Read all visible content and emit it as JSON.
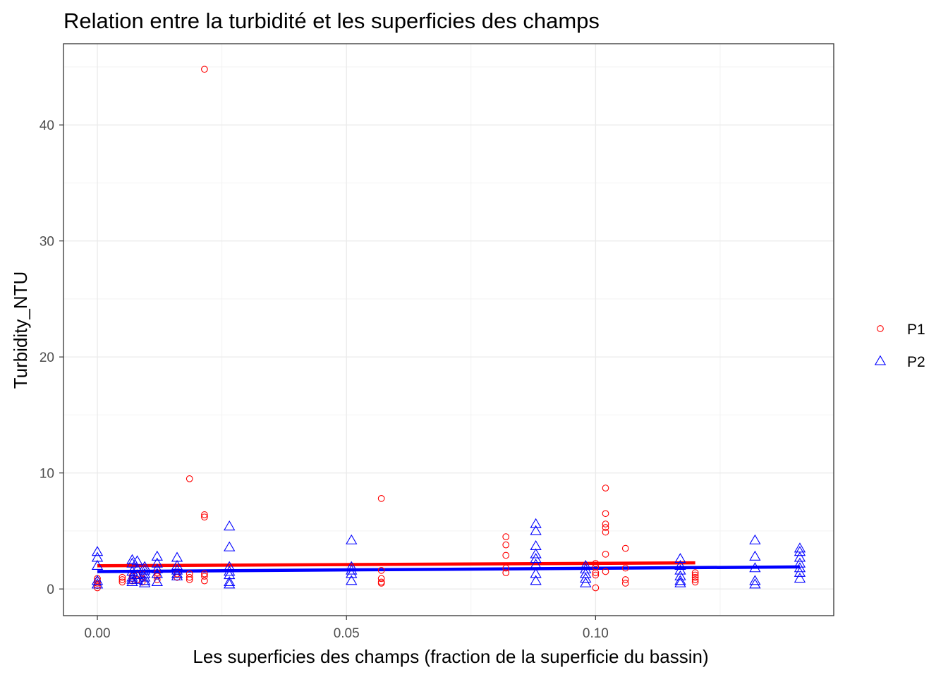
{
  "chart_data": {
    "type": "scatter",
    "title": "Relation entre la turbidité et les superficies des champs",
    "xlabel": "Les superficies des champs (fraction de la superficie du bassin)",
    "ylabel": "Turbidity_NTU",
    "xlim": [
      -0.0068,
      0.1478
    ],
    "ylim": [
      -2.3,
      47.0
    ],
    "x_ticks": [
      0.0,
      0.05,
      0.1
    ],
    "x_tick_labels": [
      "0.00",
      "0.05",
      "0.10"
    ],
    "y_ticks": [
      0,
      10,
      20,
      30,
      40
    ],
    "y_tick_labels": [
      "0",
      "10",
      "20",
      "30",
      "40"
    ],
    "grid": true,
    "legend_position": "right",
    "series": [
      {
        "name": "P1",
        "marker": "circle",
        "color": "#ff0000",
        "points": [
          [
            0.0,
            0.1
          ],
          [
            0.0,
            0.3
          ],
          [
            0.0,
            0.5
          ],
          [
            0.0,
            0.7
          ],
          [
            0.0,
            0.9
          ],
          [
            0.005,
            0.6
          ],
          [
            0.005,
            0.8
          ],
          [
            0.005,
            1.0
          ],
          [
            0.007,
            0.7
          ],
          [
            0.007,
            0.9
          ],
          [
            0.007,
            1.1
          ],
          [
            0.008,
            0.8
          ],
          [
            0.008,
            1.2
          ],
          [
            0.009,
            0.6
          ],
          [
            0.009,
            0.9
          ],
          [
            0.009,
            1.3
          ],
          [
            0.012,
            0.8
          ],
          [
            0.012,
            1.1
          ],
          [
            0.012,
            1.4
          ],
          [
            0.016,
            1.0
          ],
          [
            0.016,
            1.3
          ],
          [
            0.0185,
            0.8
          ],
          [
            0.0185,
            1.0
          ],
          [
            0.0185,
            1.3
          ],
          [
            0.0185,
            9.5
          ],
          [
            0.0215,
            0.7
          ],
          [
            0.0215,
            1.1
          ],
          [
            0.0215,
            1.3
          ],
          [
            0.0215,
            6.2
          ],
          [
            0.0215,
            6.4
          ],
          [
            0.0215,
            44.8
          ],
          [
            0.057,
            0.5
          ],
          [
            0.057,
            0.6
          ],
          [
            0.057,
            0.9
          ],
          [
            0.057,
            1.6
          ],
          [
            0.057,
            7.8
          ],
          [
            0.082,
            1.4
          ],
          [
            0.082,
            1.8
          ],
          [
            0.082,
            2.9
          ],
          [
            0.082,
            3.8
          ],
          [
            0.082,
            4.5
          ],
          [
            0.1,
            0.1
          ],
          [
            0.1,
            1.2
          ],
          [
            0.1,
            1.4
          ],
          [
            0.1,
            1.9
          ],
          [
            0.1,
            2.2
          ],
          [
            0.102,
            1.5
          ],
          [
            0.102,
            3.0
          ],
          [
            0.102,
            4.9
          ],
          [
            0.102,
            5.3
          ],
          [
            0.102,
            5.6
          ],
          [
            0.102,
            6.5
          ],
          [
            0.102,
            8.7
          ],
          [
            0.106,
            0.5
          ],
          [
            0.106,
            0.8
          ],
          [
            0.106,
            1.8
          ],
          [
            0.106,
            3.5
          ],
          [
            0.12,
            0.6
          ],
          [
            0.12,
            0.8
          ],
          [
            0.12,
            1.0
          ],
          [
            0.12,
            1.2
          ],
          [
            0.12,
            1.4
          ]
        ],
        "trend": {
          "x": [
            0.0,
            0.12
          ],
          "y": [
            2.0,
            2.25
          ]
        }
      },
      {
        "name": "P2",
        "marker": "triangle",
        "color": "#0000ff",
        "points": [
          [
            0.0,
            0.4
          ],
          [
            0.0,
            0.7
          ],
          [
            0.0,
            2.0
          ],
          [
            0.0,
            2.7
          ],
          [
            0.0,
            3.2
          ],
          [
            0.007,
            0.6
          ],
          [
            0.007,
            0.8
          ],
          [
            0.007,
            1.0
          ],
          [
            0.007,
            1.5
          ],
          [
            0.007,
            2.2
          ],
          [
            0.007,
            2.5
          ],
          [
            0.008,
            0.8
          ],
          [
            0.008,
            1.2
          ],
          [
            0.008,
            1.7
          ],
          [
            0.008,
            2.4
          ],
          [
            0.0095,
            0.5
          ],
          [
            0.0095,
            0.7
          ],
          [
            0.0095,
            1.0
          ],
          [
            0.0095,
            1.3
          ],
          [
            0.0095,
            1.6
          ],
          [
            0.0095,
            1.9
          ],
          [
            0.012,
            0.6
          ],
          [
            0.012,
            1.3
          ],
          [
            0.012,
            1.7
          ],
          [
            0.012,
            2.2
          ],
          [
            0.012,
            2.8
          ],
          [
            0.016,
            1.1
          ],
          [
            0.016,
            1.3
          ],
          [
            0.016,
            1.6
          ],
          [
            0.016,
            2.0
          ],
          [
            0.016,
            2.7
          ],
          [
            0.0265,
            0.4
          ],
          [
            0.0265,
            0.6
          ],
          [
            0.0265,
            1.2
          ],
          [
            0.0265,
            1.5
          ],
          [
            0.0265,
            1.9
          ],
          [
            0.0265,
            3.6
          ],
          [
            0.0265,
            5.4
          ],
          [
            0.051,
            0.7
          ],
          [
            0.051,
            1.3
          ],
          [
            0.051,
            1.6
          ],
          [
            0.051,
            1.9
          ],
          [
            0.051,
            4.2
          ],
          [
            0.088,
            0.7
          ],
          [
            0.088,
            1.3
          ],
          [
            0.088,
            2.1
          ],
          [
            0.088,
            2.6
          ],
          [
            0.088,
            3.0
          ],
          [
            0.088,
            3.7
          ],
          [
            0.088,
            5.0
          ],
          [
            0.088,
            5.6
          ],
          [
            0.098,
            0.5
          ],
          [
            0.098,
            0.9
          ],
          [
            0.098,
            1.3
          ],
          [
            0.098,
            1.7
          ],
          [
            0.098,
            2.0
          ],
          [
            0.117,
            0.5
          ],
          [
            0.117,
            0.7
          ],
          [
            0.117,
            1.1
          ],
          [
            0.117,
            1.6
          ],
          [
            0.117,
            2.0
          ],
          [
            0.117,
            2.6
          ],
          [
            0.132,
            0.4
          ],
          [
            0.132,
            0.7
          ],
          [
            0.132,
            1.8
          ],
          [
            0.132,
            2.8
          ],
          [
            0.132,
            4.2
          ],
          [
            0.141,
            0.9
          ],
          [
            0.141,
            1.4
          ],
          [
            0.141,
            1.8
          ],
          [
            0.141,
            2.2
          ],
          [
            0.141,
            2.7
          ],
          [
            0.141,
            3.2
          ],
          [
            0.141,
            3.5
          ]
        ],
        "trend": {
          "x": [
            0.0,
            0.141
          ],
          "y": [
            1.5,
            1.9
          ]
        }
      }
    ]
  }
}
